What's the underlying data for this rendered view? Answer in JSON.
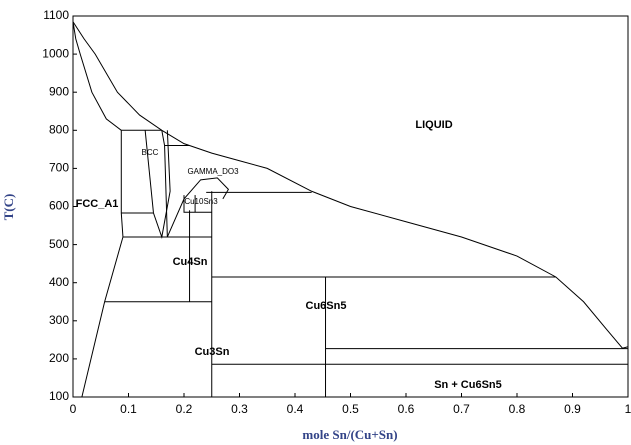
{
  "chart_data": {
    "type": "line",
    "x_label": "mole Sn/(Cu+Sn)",
    "y_label": "T(C)",
    "xlim": [
      0,
      1
    ],
    "ylim": [
      100,
      1100
    ],
    "xticks": [
      0,
      0.1,
      0.2,
      0.3,
      0.4,
      0.5,
      0.6,
      0.7,
      0.8,
      0.9,
      1
    ],
    "yticks": [
      100,
      200,
      300,
      400,
      500,
      600,
      700,
      800,
      900,
      1000,
      1100
    ],
    "color": "#000000",
    "series": [
      {
        "x": [
          0,
          0.02,
          0.04,
          0.08,
          0.12,
          0.16,
          0.2,
          0.25,
          0.3,
          0.35,
          0.43,
          0.5,
          0.6,
          0.7,
          0.8,
          0.87,
          0.92,
          0.96,
          0.99,
          1
        ],
        "values": [
          1085,
          1040,
          1000,
          900,
          840,
          800,
          765,
          740,
          720,
          700,
          640,
          600,
          560,
          520,
          470,
          415,
          350,
          280,
          228,
          232
        ]
      },
      {
        "x": [
          0,
          0.005,
          0.013,
          0.034,
          0.06,
          0.087
        ],
        "values": [
          1085,
          1040,
          1000,
          900,
          830,
          800
        ]
      },
      {
        "x": [
          0.087,
          0.16
        ],
        "values": [
          800,
          800
        ]
      },
      {
        "x": [
          0.087,
          0.087,
          0.09,
          0.057,
          0.016
        ],
        "values": [
          800,
          583,
          520,
          350,
          100
        ]
      },
      {
        "x": [
          0.087,
          0.145
        ],
        "values": [
          583,
          583
        ]
      },
      {
        "x": [
          0.13,
          0.145,
          0.16,
          0.175,
          0.17
        ],
        "values": [
          800,
          583,
          520,
          640,
          800
        ]
      },
      {
        "x": [
          0.16,
          0.165,
          0.17
        ],
        "values": [
          800,
          760,
          520
        ]
      },
      {
        "x": [
          0.165,
          0.21
        ],
        "values": [
          760,
          760
        ]
      },
      {
        "x": [
          0.17,
          0.2,
          0.23,
          0.26,
          0.28,
          0.27
        ],
        "values": [
          520,
          620,
          670,
          675,
          645,
          620
        ]
      },
      {
        "x": [
          0.09,
          0.25
        ],
        "values": [
          520,
          520
        ]
      },
      {
        "x": [
          0.24,
          0.43
        ],
        "values": [
          637,
          637
        ]
      },
      {
        "x": [
          0.2,
          0.2,
          0.25
        ],
        "values": [
          630,
          585,
          585
        ]
      },
      {
        "x": [
          0.22,
          0.22
        ],
        "values": [
          630,
          585
        ]
      },
      {
        "x": [
          0.21,
          0.21
        ],
        "values": [
          590,
          350
        ]
      },
      {
        "x": [
          0.25,
          0.25
        ],
        "values": [
          640,
          100
        ]
      },
      {
        "x": [
          0.057,
          0.25
        ],
        "values": [
          350,
          350
        ]
      },
      {
        "x": [
          0.25,
          0.87
        ],
        "values": [
          415,
          415
        ]
      },
      {
        "x": [
          0.455,
          0.455
        ],
        "values": [
          415,
          100
        ]
      },
      {
        "x": [
          0.455,
          1
        ],
        "values": [
          227,
          227
        ]
      },
      {
        "x": [
          0.25,
          1
        ],
        "values": [
          186,
          186
        ]
      }
    ],
    "annotations": [
      "LIQUID",
      "BCC",
      "GAMMA_DO3",
      "Cu10Sn3",
      "FCC_A1",
      "Cu4Sn",
      "Cu6Sn5",
      "Cu3Sn",
      "Sn + Cu6Sn5"
    ]
  }
}
